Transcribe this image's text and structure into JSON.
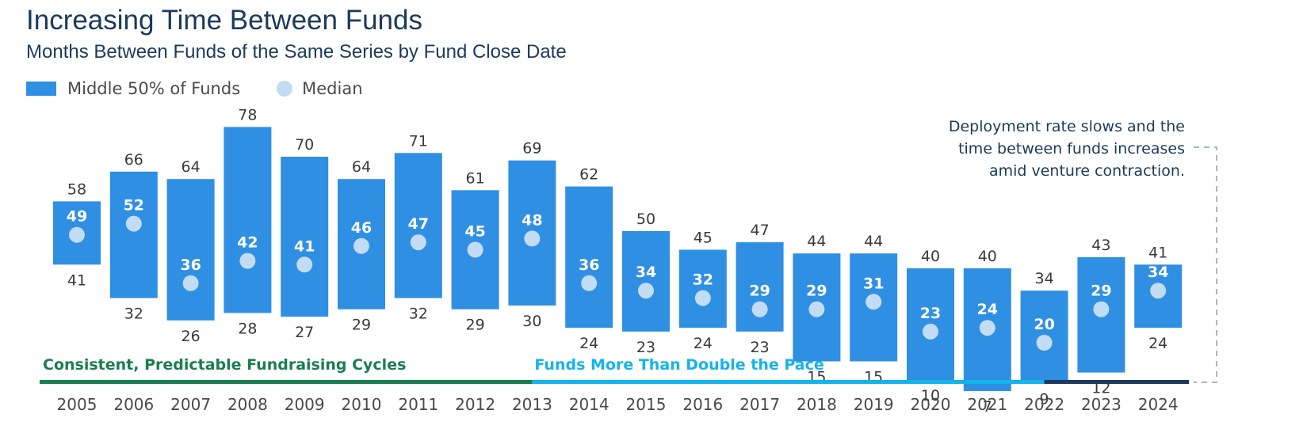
{
  "chart_data": {
    "type": "floating-bar",
    "title": "Increasing Time Between Funds",
    "subtitle": "Months Between Funds of the Same Series by Fund Close Date",
    "legend": {
      "range_label": "Middle 50% of Funds",
      "median_label": "Median",
      "placement": "top-left"
    },
    "categories": [
      "2005",
      "2006",
      "2007",
      "2008",
      "2009",
      "2010",
      "2011",
      "2012",
      "2013",
      "2014",
      "2015",
      "2016",
      "2017",
      "2018",
      "2019",
      "2020",
      "2021",
      "2022",
      "2023",
      "2024"
    ],
    "upper": [
      58,
      66,
      64,
      78,
      70,
      64,
      71,
      61,
      69,
      62,
      50,
      45,
      47,
      44,
      44,
      40,
      40,
      34,
      43,
      41
    ],
    "lower": [
      41,
      32,
      26,
      28,
      27,
      29,
      32,
      29,
      30,
      24,
      23,
      24,
      23,
      15,
      15,
      10,
      7,
      9,
      12,
      24
    ],
    "median": [
      49,
      52,
      36,
      42,
      41,
      46,
      47,
      45,
      48,
      36,
      34,
      32,
      29,
      29,
      31,
      23,
      24,
      20,
      29,
      34
    ],
    "y_range": [
      0,
      80
    ],
    "grid": false,
    "annotation": {
      "lines": [
        "Deployment rate slows and the",
        "time between funds increases",
        "amid venture contraction."
      ],
      "color": "#1b3a5c"
    },
    "eras": [
      {
        "label": "Consistent, Predictable Fundraising Cycles",
        "from": "2005",
        "to": "2013",
        "color": "#1a7d4f"
      },
      {
        "label": "Funds More Than Double the Pace",
        "from": "2013",
        "to": "2022",
        "color": "#13b4ec"
      },
      {
        "label": "",
        "from": "2022",
        "to": "2024",
        "color": "#1b3a5c"
      }
    ],
    "colors": {
      "bar": "#2f8fe3",
      "median_dot": "#c2dcf3",
      "label": "#3a3a3a",
      "median_label": "#ffffff",
      "annotation_line": "#a9b6c4"
    }
  }
}
